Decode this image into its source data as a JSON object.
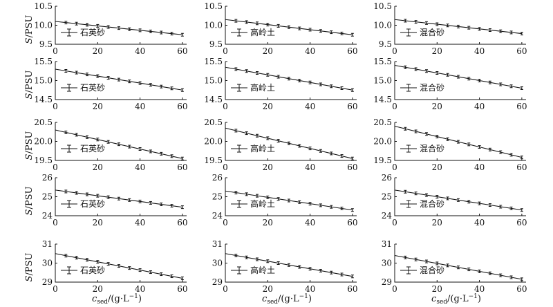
{
  "labels": {
    "y_axis": "S/PSU",
    "x_axis": "c_sed/(g·L⁻¹)",
    "x_axis_main": "c",
    "x_axis_sub": "sed",
    "x_axis_unit": "/(g·L",
    "x_axis_exp": "−1",
    "x_axis_close": ")"
  },
  "colors": {
    "line": "#111111",
    "axis": "#111111",
    "background": "#ffffff"
  },
  "chart_data": {
    "type": "line",
    "layout": "grid 5 rows × 3 columns",
    "columns": [
      "石英砂",
      "高岭土",
      "混合砂"
    ],
    "x_ticks": [
      "0",
      "20",
      "40",
      "60"
    ],
    "xlim": [
      0,
      62
    ],
    "markers": "error bars at each measured point",
    "legend_position": "lower-left",
    "panels": [
      {
        "row": 0,
        "col": 0,
        "legend": "石英砂",
        "ylim": [
          9.5,
          10.5
        ],
        "yticks": [
          "9.5",
          "10.0",
          "10.5"
        ],
        "x": [
          0,
          60
        ],
        "y": [
          10.1,
          9.75
        ]
      },
      {
        "row": 0,
        "col": 1,
        "legend": "高岭土",
        "ylim": [
          9.5,
          10.5
        ],
        "yticks": [
          "9.5",
          "10.0",
          "10.5"
        ],
        "x": [
          0,
          60
        ],
        "y": [
          10.15,
          9.75
        ]
      },
      {
        "row": 0,
        "col": 2,
        "legend": "混合砂",
        "ylim": [
          9.5,
          10.5
        ],
        "yticks": [
          "9.5",
          "10.0",
          "10.5"
        ],
        "x": [
          0,
          60
        ],
        "y": [
          10.15,
          9.78
        ]
      },
      {
        "row": 1,
        "col": 0,
        "legend": "石英砂",
        "ylim": [
          14.5,
          15.5
        ],
        "yticks": [
          "14.5",
          "15.0",
          "15.5"
        ],
        "x": [
          0,
          60
        ],
        "y": [
          15.3,
          14.75
        ]
      },
      {
        "row": 1,
        "col": 1,
        "legend": "高岭土",
        "ylim": [
          14.5,
          15.5
        ],
        "yticks": [
          "14.5",
          "15.0",
          "15.5"
        ],
        "x": [
          0,
          60
        ],
        "y": [
          15.35,
          14.75
        ]
      },
      {
        "row": 1,
        "col": 2,
        "legend": "混合砂",
        "ylim": [
          14.5,
          15.5
        ],
        "yticks": [
          "14.5",
          "15.0",
          "15.5"
        ],
        "x": [
          0,
          60
        ],
        "y": [
          15.4,
          14.8
        ]
      },
      {
        "row": 2,
        "col": 0,
        "legend": "石英砂",
        "ylim": [
          19.5,
          20.5
        ],
        "yticks": [
          "19.5",
          "20.0",
          "20.5"
        ],
        "x": [
          0,
          60
        ],
        "y": [
          20.3,
          19.55
        ]
      },
      {
        "row": 2,
        "col": 1,
        "legend": "高岭土",
        "ylim": [
          19.5,
          20.5
        ],
        "yticks": [
          "19.5",
          "20.0",
          "20.5"
        ],
        "x": [
          0,
          60
        ],
        "y": [
          20.35,
          19.55
        ]
      },
      {
        "row": 2,
        "col": 2,
        "legend": "混合砂",
        "ylim": [
          19.5,
          20.5
        ],
        "yticks": [
          "19.5",
          "20.0",
          "20.5"
        ],
        "x": [
          0,
          60
        ],
        "y": [
          20.4,
          19.58
        ]
      },
      {
        "row": 3,
        "col": 0,
        "legend": "石英砂",
        "ylim": [
          24,
          26
        ],
        "yticks": [
          "24",
          "25",
          "26"
        ],
        "x": [
          0,
          60
        ],
        "y": [
          25.35,
          24.45
        ]
      },
      {
        "row": 3,
        "col": 1,
        "legend": "高岭土",
        "ylim": [
          24,
          26
        ],
        "yticks": [
          "24",
          "25",
          "26"
        ],
        "x": [
          0,
          60
        ],
        "y": [
          25.3,
          24.3
        ]
      },
      {
        "row": 3,
        "col": 2,
        "legend": "混合砂",
        "ylim": [
          24,
          26
        ],
        "yticks": [
          "24",
          "25",
          "26"
        ],
        "x": [
          0,
          60
        ],
        "y": [
          25.35,
          24.3
        ]
      },
      {
        "row": 4,
        "col": 0,
        "legend": "石英砂",
        "ylim": [
          29,
          31
        ],
        "yticks": [
          "29",
          "30",
          "31"
        ],
        "x": [
          0,
          60
        ],
        "y": [
          30.5,
          29.2
        ]
      },
      {
        "row": 4,
        "col": 1,
        "legend": "高岭土",
        "ylim": [
          29,
          31
        ],
        "yticks": [
          "29",
          "30",
          "31"
        ],
        "x": [
          0,
          60
        ],
        "y": [
          30.5,
          29.3
        ]
      },
      {
        "row": 4,
        "col": 2,
        "legend": "混合砂",
        "ylim": [
          29,
          31
        ],
        "yticks": [
          "29",
          "30",
          "31"
        ],
        "x": [
          0,
          60
        ],
        "y": [
          30.4,
          29.15
        ]
      }
    ]
  }
}
